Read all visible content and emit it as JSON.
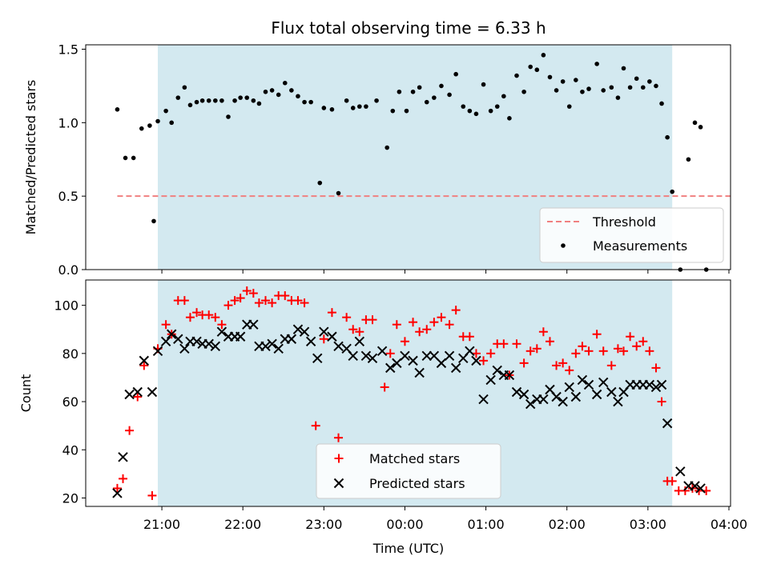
{
  "chart_data": {
    "title": "Flux total observing time = 6.33 h",
    "xlabel": "Time (UTC)",
    "x_tick_labels": [
      "21:00",
      "22:00",
      "23:00",
      "00:00",
      "01:00",
      "02:00",
      "03:00",
      "04:00"
    ],
    "x_tick_hours": [
      21,
      22,
      23,
      24,
      25,
      26,
      27,
      28
    ],
    "xlim_hours": [
      20.06,
      28.02
    ],
    "observing_window_hours": [
      20.95,
      27.3
    ],
    "window_color": "#d3e9f0",
    "top": {
      "type": "scatter",
      "ylabel": "Matched/Predicted stars",
      "ylim": [
        0.0,
        1.53
      ],
      "y_ticks": [
        0.0,
        0.5,
        1.0,
        1.5
      ],
      "y_tick_labels": [
        "0.0",
        "0.5",
        "1.0",
        "1.5"
      ],
      "threshold": {
        "name": "Threshold",
        "value": 0.5,
        "x_range_hours": [
          20.45,
          28.7
        ],
        "color": "#f08080"
      },
      "measurements_name": "Measurements",
      "measurements_color": "#000000",
      "points": [
        [
          20.45,
          1.09
        ],
        [
          20.55,
          0.76
        ],
        [
          20.65,
          0.76
        ],
        [
          20.75,
          0.96
        ],
        [
          20.85,
          0.98
        ],
        [
          20.9,
          0.33
        ],
        [
          20.95,
          1.01
        ],
        [
          21.05,
          1.08
        ],
        [
          21.12,
          1.0
        ],
        [
          21.2,
          1.17
        ],
        [
          21.28,
          1.24
        ],
        [
          21.35,
          1.12
        ],
        [
          21.43,
          1.14
        ],
        [
          21.5,
          1.15
        ],
        [
          21.58,
          1.15
        ],
        [
          21.66,
          1.15
        ],
        [
          21.74,
          1.15
        ],
        [
          21.82,
          1.04
        ],
        [
          21.9,
          1.15
        ],
        [
          21.97,
          1.17
        ],
        [
          22.05,
          1.17
        ],
        [
          22.13,
          1.15
        ],
        [
          22.2,
          1.13
        ],
        [
          22.28,
          1.21
        ],
        [
          22.36,
          1.22
        ],
        [
          22.44,
          1.19
        ],
        [
          22.52,
          1.27
        ],
        [
          22.6,
          1.22
        ],
        [
          22.68,
          1.18
        ],
        [
          22.76,
          1.14
        ],
        [
          22.84,
          1.14
        ],
        [
          22.95,
          0.59
        ],
        [
          23.0,
          1.1
        ],
        [
          23.1,
          1.09
        ],
        [
          23.18,
          0.52
        ],
        [
          23.28,
          1.15
        ],
        [
          23.36,
          1.1
        ],
        [
          23.44,
          1.11
        ],
        [
          23.52,
          1.11
        ],
        [
          23.65,
          1.15
        ],
        [
          23.78,
          0.83
        ],
        [
          23.85,
          1.08
        ],
        [
          23.93,
          1.21
        ],
        [
          24.02,
          1.08
        ],
        [
          24.1,
          1.21
        ],
        [
          24.18,
          1.24
        ],
        [
          24.27,
          1.14
        ],
        [
          24.36,
          1.17
        ],
        [
          24.45,
          1.25
        ],
        [
          24.55,
          1.19
        ],
        [
          24.63,
          1.33
        ],
        [
          24.72,
          1.11
        ],
        [
          24.8,
          1.08
        ],
        [
          24.88,
          1.06
        ],
        [
          24.97,
          1.26
        ],
        [
          25.06,
          1.08
        ],
        [
          25.14,
          1.11
        ],
        [
          25.22,
          1.18
        ],
        [
          25.29,
          1.03
        ],
        [
          25.38,
          1.32
        ],
        [
          25.47,
          1.21
        ],
        [
          25.55,
          1.38
        ],
        [
          25.63,
          1.36
        ],
        [
          25.71,
          1.46
        ],
        [
          25.79,
          1.31
        ],
        [
          25.87,
          1.22
        ],
        [
          25.95,
          1.28
        ],
        [
          26.03,
          1.11
        ],
        [
          26.11,
          1.29
        ],
        [
          26.19,
          1.21
        ],
        [
          26.27,
          1.23
        ],
        [
          26.37,
          1.4
        ],
        [
          26.45,
          1.22
        ],
        [
          26.55,
          1.24
        ],
        [
          26.63,
          1.17
        ],
        [
          26.7,
          1.37
        ],
        [
          26.78,
          1.24
        ],
        [
          26.86,
          1.3
        ],
        [
          26.94,
          1.24
        ],
        [
          27.02,
          1.28
        ],
        [
          27.1,
          1.25
        ],
        [
          27.17,
          1.13
        ],
        [
          27.24,
          0.9
        ],
        [
          27.3,
          0.53
        ],
        [
          27.4,
          0.0
        ],
        [
          27.5,
          0.75
        ],
        [
          27.58,
          1.0
        ],
        [
          27.65,
          0.97
        ],
        [
          27.72,
          0.0
        ]
      ]
    },
    "bottom": {
      "type": "scatter",
      "ylabel": "Count",
      "ylim": [
        16.5,
        110.5
      ],
      "y_ticks": [
        20,
        40,
        60,
        80,
        100
      ],
      "y_tick_labels": [
        "20",
        "40",
        "60",
        "80",
        "100"
      ],
      "series": [
        {
          "name": "Matched stars",
          "marker": "plus",
          "color": "#ff0000",
          "points": [
            [
              20.45,
              24
            ],
            [
              20.52,
              28
            ],
            [
              20.6,
              48
            ],
            [
              20.7,
              62
            ],
            [
              20.78,
              75
            ],
            [
              20.88,
              21
            ],
            [
              20.95,
              82
            ],
            [
              21.05,
              92
            ],
            [
              21.12,
              88
            ],
            [
              21.2,
              102
            ],
            [
              21.28,
              102
            ],
            [
              21.35,
              95
            ],
            [
              21.43,
              97
            ],
            [
              21.5,
              96
            ],
            [
              21.58,
              96
            ],
            [
              21.66,
              95
            ],
            [
              21.74,
              92
            ],
            [
              21.82,
              100
            ],
            [
              21.9,
              102
            ],
            [
              21.97,
              103
            ],
            [
              22.05,
              106
            ],
            [
              22.13,
              105
            ],
            [
              22.2,
              101
            ],
            [
              22.28,
              102
            ],
            [
              22.36,
              101
            ],
            [
              22.44,
              104
            ],
            [
              22.52,
              104
            ],
            [
              22.6,
              102
            ],
            [
              22.68,
              102
            ],
            [
              22.76,
              101
            ],
            [
              22.9,
              50
            ],
            [
              23.0,
              86
            ],
            [
              23.1,
              97
            ],
            [
              23.18,
              45
            ],
            [
              23.28,
              95
            ],
            [
              23.36,
              90
            ],
            [
              23.44,
              89
            ],
            [
              23.52,
              94
            ],
            [
              23.6,
              94
            ],
            [
              23.75,
              66
            ],
            [
              23.82,
              80
            ],
            [
              23.9,
              92
            ],
            [
              24.0,
              85
            ],
            [
              24.1,
              93
            ],
            [
              24.18,
              89
            ],
            [
              24.27,
              90
            ],
            [
              24.36,
              93
            ],
            [
              24.45,
              95
            ],
            [
              24.55,
              92
            ],
            [
              24.63,
              98
            ],
            [
              24.72,
              87
            ],
            [
              24.8,
              87
            ],
            [
              24.88,
              80
            ],
            [
              24.97,
              77
            ],
            [
              25.06,
              80
            ],
            [
              25.14,
              84
            ],
            [
              25.22,
              84
            ],
            [
              25.29,
              71
            ],
            [
              25.38,
              84
            ],
            [
              25.47,
              76
            ],
            [
              25.55,
              81
            ],
            [
              25.63,
              82
            ],
            [
              25.71,
              89
            ],
            [
              25.79,
              85
            ],
            [
              25.87,
              75
            ],
            [
              25.95,
              76
            ],
            [
              26.03,
              73
            ],
            [
              26.11,
              80
            ],
            [
              26.19,
              83
            ],
            [
              26.27,
              81
            ],
            [
              26.37,
              88
            ],
            [
              26.45,
              81
            ],
            [
              26.55,
              75
            ],
            [
              26.63,
              82
            ],
            [
              26.7,
              81
            ],
            [
              26.78,
              87
            ],
            [
              26.86,
              83
            ],
            [
              26.94,
              85
            ],
            [
              27.02,
              81
            ],
            [
              27.1,
              74
            ],
            [
              27.17,
              60
            ],
            [
              27.24,
              27
            ],
            [
              27.3,
              27
            ],
            [
              27.38,
              23
            ],
            [
              27.46,
              23
            ],
            [
              27.55,
              24
            ],
            [
              27.63,
              23
            ],
            [
              27.72,
              23
            ]
          ]
        },
        {
          "name": "Predicted stars",
          "marker": "x",
          "color": "#000000",
          "points": [
            [
              20.45,
              22
            ],
            [
              20.52,
              37
            ],
            [
              20.6,
              63
            ],
            [
              20.7,
              64
            ],
            [
              20.78,
              77
            ],
            [
              20.88,
              64
            ],
            [
              20.95,
              81
            ],
            [
              21.05,
              85
            ],
            [
              21.12,
              88
            ],
            [
              21.2,
              86
            ],
            [
              21.28,
              82
            ],
            [
              21.35,
              85
            ],
            [
              21.43,
              85
            ],
            [
              21.5,
              84
            ],
            [
              21.58,
              84
            ],
            [
              21.66,
              83
            ],
            [
              21.74,
              89
            ],
            [
              21.82,
              87
            ],
            [
              21.9,
              87
            ],
            [
              21.97,
              87
            ],
            [
              22.05,
              92
            ],
            [
              22.13,
              92
            ],
            [
              22.2,
              83
            ],
            [
              22.28,
              83
            ],
            [
              22.36,
              84
            ],
            [
              22.44,
              82
            ],
            [
              22.52,
              86
            ],
            [
              22.6,
              86
            ],
            [
              22.68,
              90
            ],
            [
              22.76,
              89
            ],
            [
              22.84,
              85
            ],
            [
              22.92,
              78
            ],
            [
              23.0,
              89
            ],
            [
              23.1,
              87
            ],
            [
              23.18,
              83
            ],
            [
              23.28,
              82
            ],
            [
              23.36,
              79
            ],
            [
              23.44,
              85
            ],
            [
              23.52,
              79
            ],
            [
              23.6,
              78
            ],
            [
              23.72,
              81
            ],
            [
              23.82,
              74
            ],
            [
              23.9,
              76
            ],
            [
              24.0,
              79
            ],
            [
              24.1,
              77
            ],
            [
              24.18,
              72
            ],
            [
              24.27,
              79
            ],
            [
              24.36,
              79
            ],
            [
              24.45,
              76
            ],
            [
              24.55,
              79
            ],
            [
              24.63,
              74
            ],
            [
              24.72,
              78
            ],
            [
              24.8,
              81
            ],
            [
              24.88,
              77
            ],
            [
              24.97,
              61
            ],
            [
              25.06,
              69
            ],
            [
              25.14,
              73
            ],
            [
              25.22,
              71
            ],
            [
              25.29,
              71
            ],
            [
              25.38,
              64
            ],
            [
              25.47,
              63
            ],
            [
              25.55,
              59
            ],
            [
              25.63,
              61
            ],
            [
              25.71,
              61
            ],
            [
              25.79,
              65
            ],
            [
              25.87,
              62
            ],
            [
              25.95,
              60
            ],
            [
              26.03,
              66
            ],
            [
              26.11,
              62
            ],
            [
              26.19,
              69
            ],
            [
              26.27,
              67
            ],
            [
              26.37,
              63
            ],
            [
              26.45,
              68
            ],
            [
              26.55,
              64
            ],
            [
              26.63,
              60
            ],
            [
              26.7,
              64
            ],
            [
              26.78,
              67
            ],
            [
              26.86,
              67
            ],
            [
              26.94,
              67
            ],
            [
              27.02,
              67
            ],
            [
              27.1,
              66
            ],
            [
              27.17,
              67
            ],
            [
              27.24,
              51
            ],
            [
              27.4,
              31
            ],
            [
              27.5,
              25
            ],
            [
              27.58,
              25
            ],
            [
              27.65,
              24
            ]
          ]
        }
      ]
    }
  }
}
